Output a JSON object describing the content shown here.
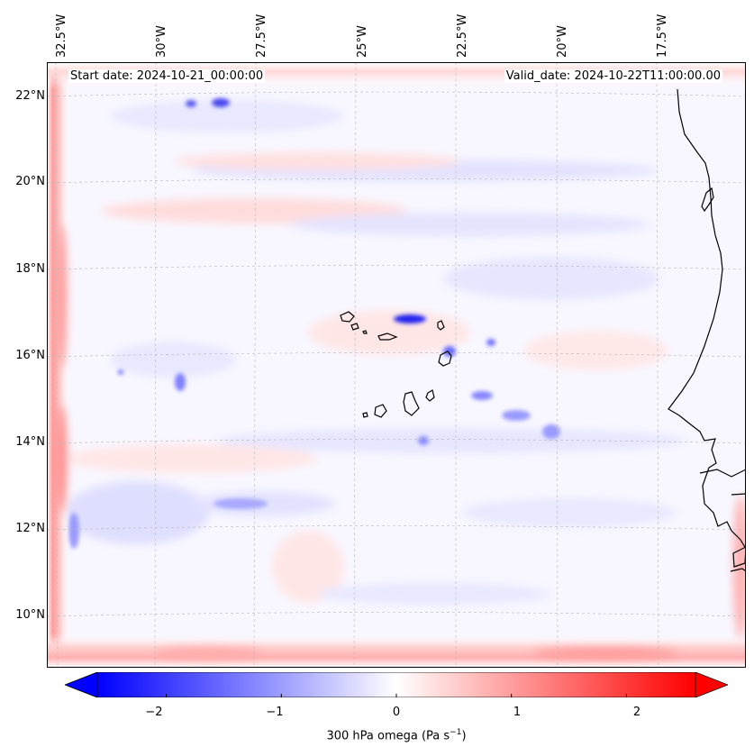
{
  "map": {
    "lon_labels": [
      "32.5°W",
      "30°W",
      "27.5°W",
      "25°W",
      "22.5°W",
      "20°W",
      "17.5°W"
    ],
    "lon_values": [
      -32.5,
      -30,
      -27.5,
      -25,
      -22.5,
      -20,
      -17.5
    ],
    "lat_labels": [
      "22°N",
      "20°N",
      "18°N",
      "16°N",
      "14°N",
      "12°N",
      "10°N"
    ],
    "lat_values": [
      22,
      20,
      18,
      16,
      14,
      12,
      10
    ],
    "extent": {
      "lon_min": -32.5,
      "lon_max": -15.5,
      "lat_min": 8.9,
      "lat_max": 22.8
    },
    "start_date": "Start date: 2024-10-21_00:00:00",
    "valid_date": "Valid_date: 2024-10-22T11:00:00.00",
    "colors": {
      "negative": "#0000ff",
      "zero": "#ffffff",
      "positive": "#ff0000",
      "coast": "#000000",
      "grid": "#b0b0b0"
    }
  },
  "colorbar": {
    "ticks": [
      "−2",
      "−1",
      "0",
      "1",
      "2"
    ],
    "tick_values": [
      -2,
      -1,
      0,
      1,
      2
    ],
    "range": [
      -2.6,
      2.6
    ],
    "label_prefix": "300 hPa omega (Pa s",
    "label_exp": "−1",
    "label_suffix": ")"
  }
}
